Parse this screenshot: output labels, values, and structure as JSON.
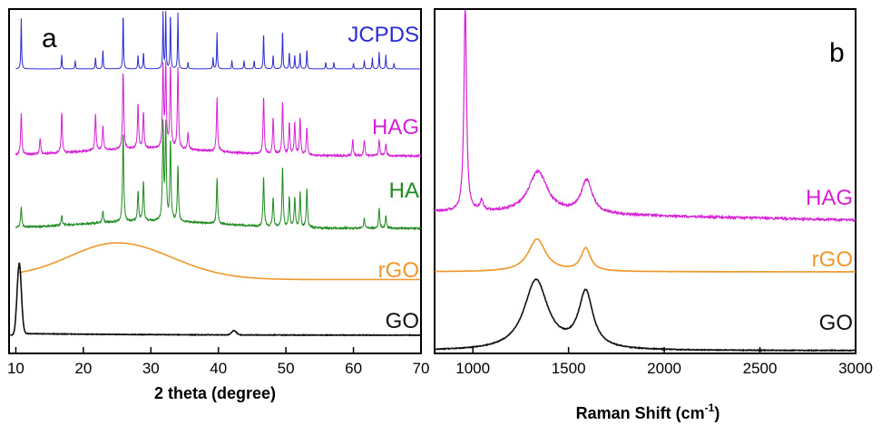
{
  "chart_data": [
    {
      "panel_label": "a",
      "type": "line",
      "xlabel": "2 theta (degree)",
      "ylabel": "",
      "xlim": [
        9,
        70
      ],
      "xticks": [
        "10",
        "20",
        "30",
        "40",
        "50",
        "60",
        "70"
      ],
      "xtick_values": [
        10,
        20,
        30,
        40,
        50,
        60,
        70
      ],
      "y_offset_stacked": true,
      "grid": false,
      "series": [
        {
          "name": "JCPDS",
          "color": "#2a2ad6",
          "baseline": 0.0,
          "peaks": [
            [
              10.8,
              0.9
            ],
            [
              16.8,
              0.25
            ],
            [
              18.8,
              0.15
            ],
            [
              21.8,
              0.2
            ],
            [
              22.9,
              0.35
            ],
            [
              25.9,
              1.0
            ],
            [
              28.1,
              0.25
            ],
            [
              28.9,
              0.3
            ],
            [
              31.8,
              1.0
            ],
            [
              32.2,
              1.0
            ],
            [
              32.9,
              1.0
            ],
            [
              34.0,
              1.0
            ],
            [
              35.5,
              0.12
            ],
            [
              39.2,
              0.2
            ],
            [
              39.8,
              0.65
            ],
            [
              42.0,
              0.15
            ],
            [
              43.8,
              0.15
            ],
            [
              45.3,
              0.15
            ],
            [
              46.7,
              0.65
            ],
            [
              48.1,
              0.25
            ],
            [
              49.5,
              0.7
            ],
            [
              50.5,
              0.3
            ],
            [
              51.3,
              0.25
            ],
            [
              52.1,
              0.3
            ],
            [
              53.1,
              0.35
            ],
            [
              55.9,
              0.12
            ],
            [
              57.1,
              0.12
            ],
            [
              60.0,
              0.1
            ],
            [
              61.6,
              0.15
            ],
            [
              62.8,
              0.2
            ],
            [
              63.8,
              0.3
            ],
            [
              64.8,
              0.25
            ],
            [
              66.0,
              0.1
            ]
          ]
        },
        {
          "name": "HAG",
          "color": "#d61fd6",
          "baseline": 0.0,
          "peaks": [
            [
              10.8,
              0.5
            ],
            [
              13.6,
              0.2
            ],
            [
              16.8,
              0.5
            ],
            [
              21.8,
              0.45
            ],
            [
              22.9,
              0.3
            ],
            [
              25.9,
              0.95
            ],
            [
              28.1,
              0.55
            ],
            [
              28.9,
              0.45
            ],
            [
              31.8,
              1.0
            ],
            [
              32.2,
              1.0
            ],
            [
              32.9,
              1.0
            ],
            [
              34.0,
              1.0
            ],
            [
              35.5,
              0.2
            ],
            [
              39.8,
              0.65
            ],
            [
              46.7,
              0.7
            ],
            [
              48.1,
              0.45
            ],
            [
              49.5,
              0.65
            ],
            [
              50.5,
              0.4
            ],
            [
              51.3,
              0.4
            ],
            [
              52.1,
              0.45
            ],
            [
              53.1,
              0.35
            ],
            [
              59.9,
              0.2
            ],
            [
              61.6,
              0.2
            ],
            [
              63.8,
              0.2
            ],
            [
              64.8,
              0.15
            ]
          ]
        },
        {
          "name": "HA",
          "color": "#1f8a1f",
          "baseline": 0.0,
          "peaks": [
            [
              10.8,
              0.2
            ],
            [
              16.8,
              0.1
            ],
            [
              22.9,
              0.12
            ],
            [
              25.9,
              0.9
            ],
            [
              28.1,
              0.3
            ],
            [
              28.9,
              0.4
            ],
            [
              31.8,
              0.95
            ],
            [
              32.2,
              0.95
            ],
            [
              32.9,
              0.8
            ],
            [
              34.0,
              0.55
            ],
            [
              39.8,
              0.45
            ],
            [
              46.7,
              0.5
            ],
            [
              48.1,
              0.3
            ],
            [
              49.5,
              0.6
            ],
            [
              50.5,
              0.3
            ],
            [
              51.3,
              0.3
            ],
            [
              52.1,
              0.35
            ],
            [
              53.1,
              0.4
            ],
            [
              61.6,
              0.1
            ],
            [
              63.8,
              0.2
            ],
            [
              64.8,
              0.12
            ]
          ]
        },
        {
          "name": "rGO",
          "color": "#f0962a",
          "broad_peak": {
            "center": 25.0,
            "start_value": 0.32,
            "peak_value": 1.0,
            "end_value": 0.25
          }
        },
        {
          "name": "GO",
          "color": "#111111",
          "peaks": [
            [
              10.5,
              1.0
            ],
            [
              42.3,
              0.06
            ]
          ]
        }
      ]
    },
    {
      "panel_label": "b",
      "type": "line",
      "xlabel": "Raman Shift (cm",
      "xlabel_superscript": "-1",
      "xlabel_suffix": ")",
      "ylabel": "",
      "xlim": [
        800,
        3000
      ],
      "xticks": [
        "1000",
        "1500",
        "2000",
        "2500",
        "3000"
      ],
      "xtick_values": [
        1000,
        1500,
        2000,
        2500,
        3000
      ],
      "y_offset_stacked": true,
      "grid": false,
      "series": [
        {
          "name": "HAG",
          "color": "#d61fd6",
          "bands": [
            [
              960,
              1.0,
              8
            ],
            [
              1045,
              0.05,
              10
            ],
            [
              1340,
              0.2,
              60
            ],
            [
              1595,
              0.16,
              35
            ]
          ],
          "baseline_start": 0.08,
          "baseline_end": 0.0
        },
        {
          "name": "rGO",
          "color": "#f0962a",
          "bands": [
            [
              1335,
              1.0,
              55
            ],
            [
              1590,
              0.7,
              30
            ]
          ]
        },
        {
          "name": "GO",
          "color": "#111111",
          "bands": [
            [
              1330,
              1.0,
              75
            ],
            [
              1590,
              0.8,
              45
            ]
          ]
        }
      ]
    }
  ]
}
